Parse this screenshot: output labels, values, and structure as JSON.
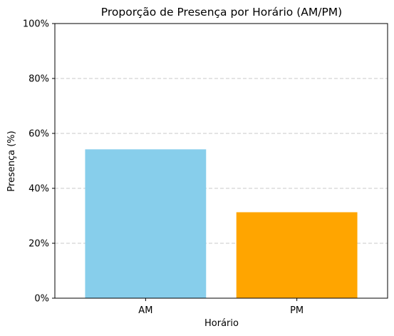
{
  "chart_data": {
    "type": "bar",
    "title": "Proporção de Presença por Horário (AM/PM)",
    "xlabel": "Horário",
    "ylabel": "Presença (%)",
    "categories": [
      "AM",
      "PM"
    ],
    "values": [
      54.2,
      31.3
    ],
    "bar_colors": [
      "#87ceeb",
      "#ffa500"
    ],
    "ylim": [
      0,
      100
    ],
    "yticks": [
      0,
      20,
      40,
      60,
      80,
      100
    ],
    "ytick_labels": [
      "0%",
      "20%",
      "40%",
      "60%",
      "80%",
      "100%"
    ],
    "grid": "y-dashed",
    "legend": "none"
  }
}
